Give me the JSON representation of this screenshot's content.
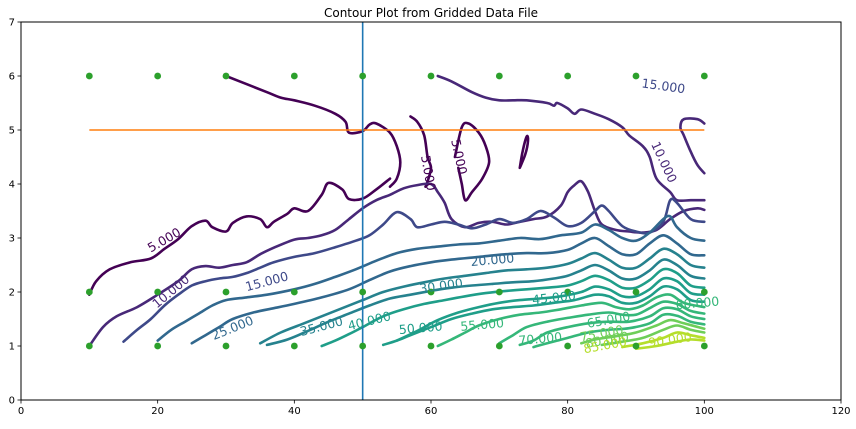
{
  "chart_data": {
    "type": "contour",
    "title": "Contour Plot from Gridded Data File",
    "xlabel": "",
    "ylabel": "",
    "xlim": [
      0,
      120
    ],
    "ylim": [
      0,
      7
    ],
    "x_ticks": [
      0,
      20,
      40,
      60,
      80,
      100,
      120
    ],
    "y_ticks": [
      0,
      1,
      2,
      3,
      4,
      5,
      6,
      7
    ],
    "grid": false,
    "data_points": {
      "color": "#2ca02c",
      "x": [
        10,
        20,
        30,
        40,
        50,
        60,
        70,
        80,
        90,
        100
      ],
      "rows_y": [
        1,
        2,
        6
      ]
    },
    "horizontal_line": {
      "y": 5,
      "x": [
        10,
        100
      ],
      "color": "#ff7f0e"
    },
    "vertical_line": {
      "x": 50,
      "color": "#1f77b4"
    },
    "contour_levels": [
      {
        "level": 5,
        "label": "5.000",
        "color": "#440154"
      },
      {
        "level": 10,
        "label": "10.000",
        "color": "#482878"
      },
      {
        "level": 15,
        "label": "15.000",
        "color": "#3e4989"
      },
      {
        "level": 20,
        "label": "20.000",
        "color": "#31688e"
      },
      {
        "level": 25,
        "label": "25.000",
        "color": "#31688e"
      },
      {
        "level": 30,
        "label": "30.000",
        "color": "#26828e"
      },
      {
        "level": 35,
        "label": "35.000",
        "color": "#26828e"
      },
      {
        "level": 40,
        "label": "40.000",
        "color": "#1f9e89"
      },
      {
        "level": 45,
        "label": "45.000",
        "color": "#1f9e89"
      },
      {
        "level": 50,
        "label": "50.000",
        "color": "#1f9e89"
      },
      {
        "level": 55,
        "label": "55.000",
        "color": "#35b779"
      },
      {
        "level": 60,
        "label": "60.000",
        "color": "#35b779"
      },
      {
        "level": 65,
        "label": "65.000",
        "color": "#35b779"
      },
      {
        "level": 70,
        "label": "70.000",
        "color": "#35b779"
      },
      {
        "level": 75,
        "label": "75.000",
        "color": "#6ece58"
      },
      {
        "level": 80,
        "label": "80.000",
        "color": "#6ece58"
      },
      {
        "level": 85,
        "label": "85.000",
        "color": "#b5de2b"
      },
      {
        "level": 90,
        "label": "90.000",
        "color": "#b5de2b"
      }
    ],
    "contour_labels": [
      {
        "text": "5.000",
        "x": 21,
        "y": 2.95,
        "rot": -30,
        "color": "#440154"
      },
      {
        "text": "5.000",
        "x": 59.5,
        "y": 4.2,
        "rot": 80,
        "color": "#440154"
      },
      {
        "text": "5.000",
        "x": 64,
        "y": 4.5,
        "rot": 78,
        "color": "#440154"
      },
      {
        "text": "10.000",
        "x": 22,
        "y": 2.0,
        "rot": -40,
        "color": "#482878"
      },
      {
        "text": "10.000",
        "x": 94,
        "y": 4.4,
        "rot": 65,
        "color": "#482878"
      },
      {
        "text": "15.000",
        "x": 36,
        "y": 2.18,
        "rot": -15,
        "color": "#3e4989"
      },
      {
        "text": "15.000",
        "x": 94,
        "y": 5.8,
        "rot": 8,
        "color": "#3e4989"
      },
      {
        "text": "20.000",
        "x": 69,
        "y": 2.58,
        "rot": -5,
        "color": "#31688e"
      },
      {
        "text": "25.000",
        "x": 31,
        "y": 1.32,
        "rot": -22,
        "color": "#31688e"
      },
      {
        "text": "30.000",
        "x": 61.5,
        "y": 2.1,
        "rot": -8,
        "color": "#26828e"
      },
      {
        "text": "35.000",
        "x": 44,
        "y": 1.35,
        "rot": -15,
        "color": "#26828e"
      },
      {
        "text": "40.000",
        "x": 51,
        "y": 1.45,
        "rot": -14,
        "color": "#1f9e89"
      },
      {
        "text": "45.000",
        "x": 78,
        "y": 1.88,
        "rot": -6,
        "color": "#1f9e89"
      },
      {
        "text": "50.000",
        "x": 58.5,
        "y": 1.32,
        "rot": -5,
        "color": "#1f9e89"
      },
      {
        "text": "55.000",
        "x": 67.5,
        "y": 1.38,
        "rot": -5,
        "color": "#35b779"
      },
      {
        "text": "60.000",
        "x": 99,
        "y": 1.78,
        "rot": -5,
        "color": "#35b779"
      },
      {
        "text": "65.000",
        "x": 86,
        "y": 1.47,
        "rot": -10,
        "color": "#35b779"
      },
      {
        "text": "70.000",
        "x": 76,
        "y": 1.12,
        "rot": -5,
        "color": "#35b779"
      },
      {
        "text": "75.000",
        "x": 85,
        "y": 1.22,
        "rot": -10,
        "color": "#6ece58"
      },
      {
        "text": "80.000",
        "x": 85.8,
        "y": 1.1,
        "rot": -10,
        "color": "#6ece58"
      },
      {
        "text": "85.000",
        "x": 85.5,
        "y": 1.0,
        "rot": -10,
        "color": "#b5de2b"
      },
      {
        "text": "90.000",
        "x": 95,
        "y": 1.1,
        "rot": -8,
        "color": "#b5de2b"
      }
    ]
  }
}
